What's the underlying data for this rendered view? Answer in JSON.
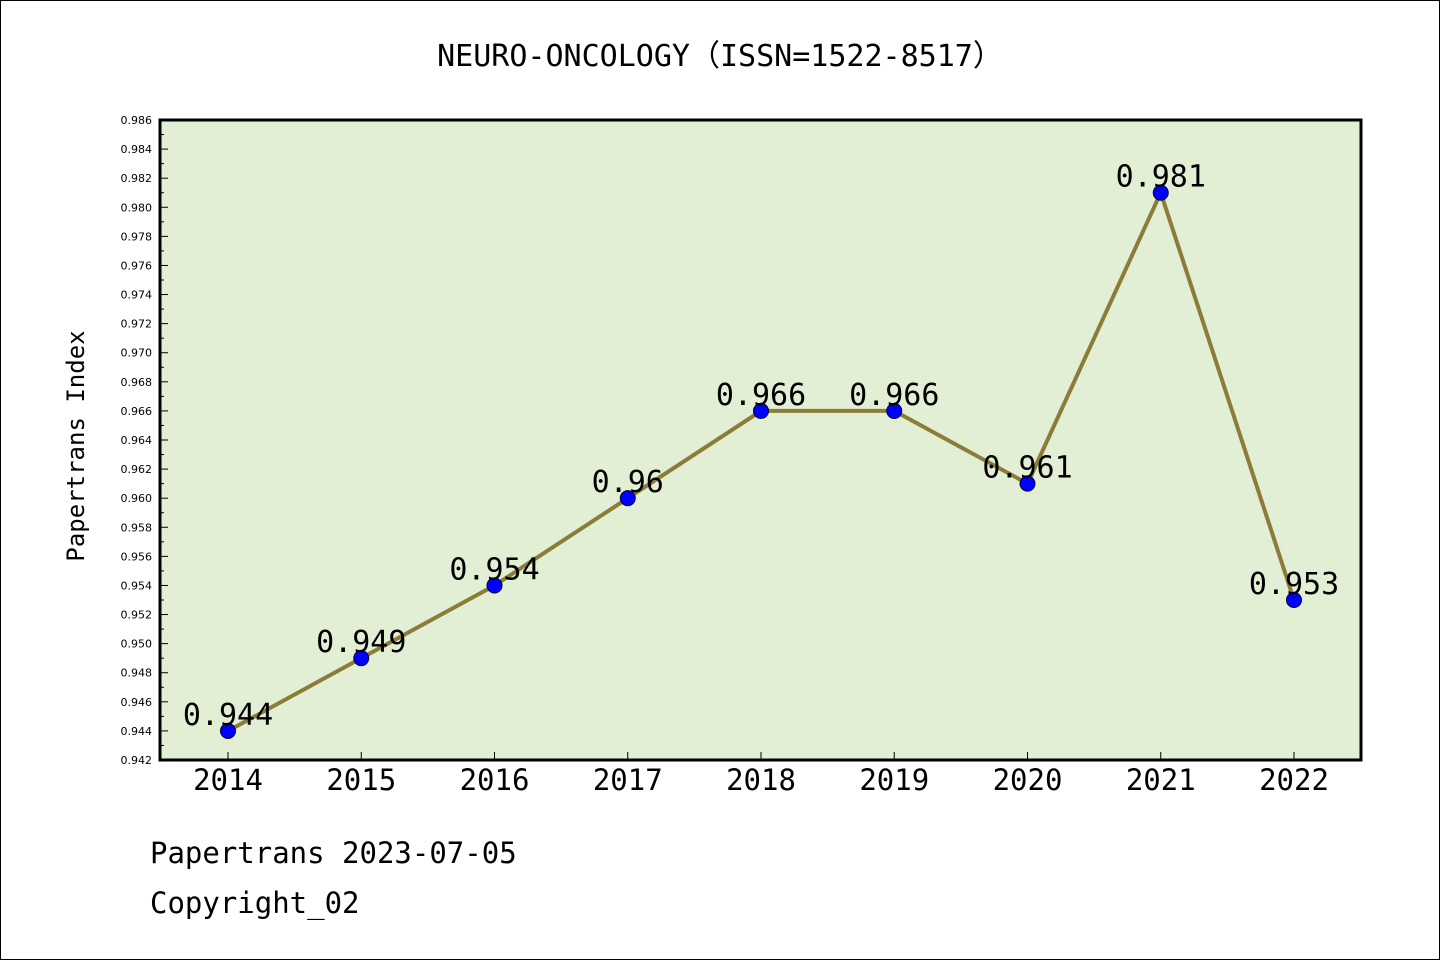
{
  "chart_data": {
    "type": "line",
    "title": "NEURO-ONCOLOGY（ISSN=1522-8517）",
    "xlabel": "",
    "ylabel": "Papertrans Index",
    "categories": [
      "2014",
      "2015",
      "2016",
      "2017",
      "2018",
      "2019",
      "2020",
      "2021",
      "2022"
    ],
    "values": [
      0.944,
      0.949,
      0.954,
      0.96,
      0.966,
      0.966,
      0.961,
      0.981,
      0.953
    ],
    "data_labels": [
      "0.944",
      "0.949",
      "0.954",
      "0.96",
      "0.966",
      "0.966",
      "0.961",
      "0.981",
      "0.953"
    ],
    "ylim": [
      0.942,
      0.986
    ],
    "y_tick_step": 0.002,
    "grid": false,
    "legend": "none",
    "colors": {
      "plot_background": "#e2efd5",
      "line": "#8b7d38",
      "marker": "#0000ff"
    }
  },
  "footer": {
    "line1": "Papertrans 2023-07-05",
    "line2": "Copyright_02"
  }
}
